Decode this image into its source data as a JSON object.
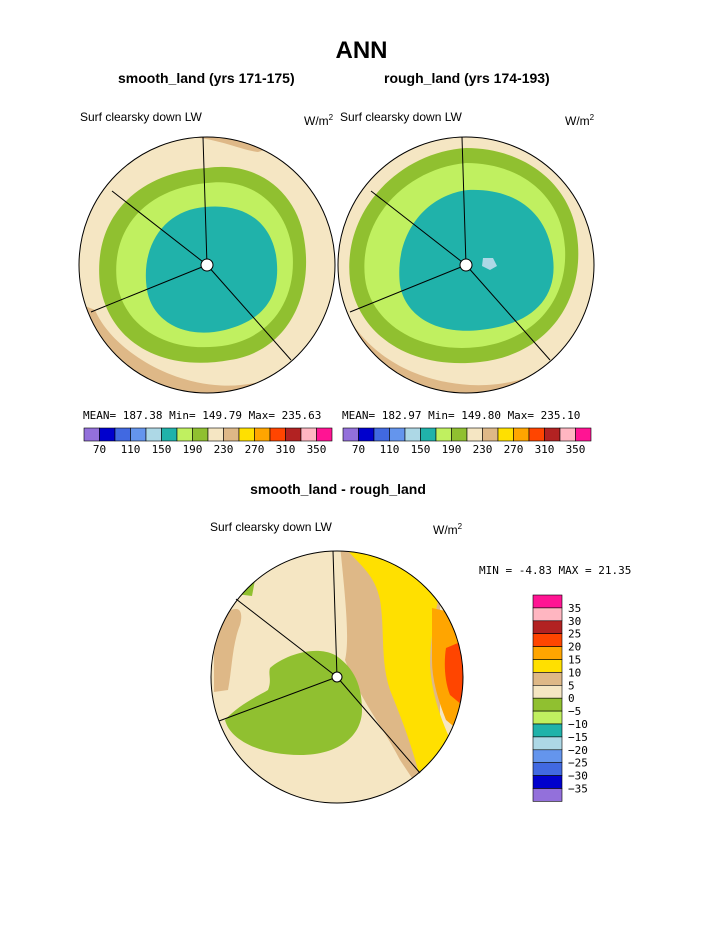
{
  "chart_data": [
    {
      "type": "polar contour map",
      "title": "ANN",
      "subtitle": "smooth_land (yrs 171-175)",
      "variable": "Surf clearsky down LW",
      "units": "W/m²",
      "stats": {
        "mean": "MEAN= 187.38",
        "min": "Min= 149.79",
        "max": "Max= 235.63"
      },
      "levels": [
        70,
        110,
        150,
        190,
        230,
        270,
        310,
        350
      ],
      "colors": [
        "#9370DB",
        "#0000CD",
        "#4169E1",
        "#6495ED",
        "#ADD8E6",
        "#20B2AA",
        "#C0F060",
        "#90C030",
        "#F5E6C3",
        "#DEB887",
        "#FFE000",
        "#FFA500",
        "#FF4500",
        "#B22222",
        "#FFB6C1",
        "#FF1493"
      ]
    },
    {
      "type": "polar contour map",
      "subtitle": "rough_land (yrs 174-193)",
      "variable": "Surf clearsky down LW",
      "units": "W/m²",
      "stats": {
        "mean": "MEAN= 182.97",
        "min": "Min= 149.80",
        "max": "Max= 235.10"
      },
      "levels": [
        70,
        110,
        150,
        190,
        230,
        270,
        310,
        350
      ]
    },
    {
      "type": "polar contour map",
      "subtitle": "smooth_land - rough_land",
      "variable": "Surf clearsky down LW",
      "units": "W/m²",
      "stats": {
        "min": "MIN =  -4.83",
        "max": "MAX =  21.35"
      },
      "levels": [
        "35",
        "30",
        "25",
        "20",
        "15",
        "10",
        "5",
        "0",
        "−5",
        "−10",
        "−15",
        "−20",
        "−25",
        "−30",
        "−35"
      ],
      "colors": [
        "#FF1493",
        "#FFB6C1",
        "#B22222",
        "#FF4500",
        "#FFA500",
        "#FFE000",
        "#DEB887",
        "#F5E6C3",
        "#90C030",
        "#C0F060",
        "#20B2AA",
        "#ADD8E6",
        "#6495ED",
        "#4169E1",
        "#0000CD",
        "#9370DB"
      ]
    }
  ],
  "labels": {
    "title": "ANN",
    "left_subtitle": "smooth_land (yrs 171-175)",
    "right_subtitle": "rough_land (yrs 174-193)",
    "diff_subtitle": "smooth_land - rough_land",
    "var_name": "Surf clearsky down LW",
    "units_base": "W/m",
    "units_exp": "2",
    "left_stats": "MEAN= 187.38  Min= 149.79  Max= 235.63",
    "right_stats": "MEAN= 182.97  Min= 149.80  Max= 235.10",
    "diff_stats": "MIN =  -4.83 MAX =  21.35"
  }
}
